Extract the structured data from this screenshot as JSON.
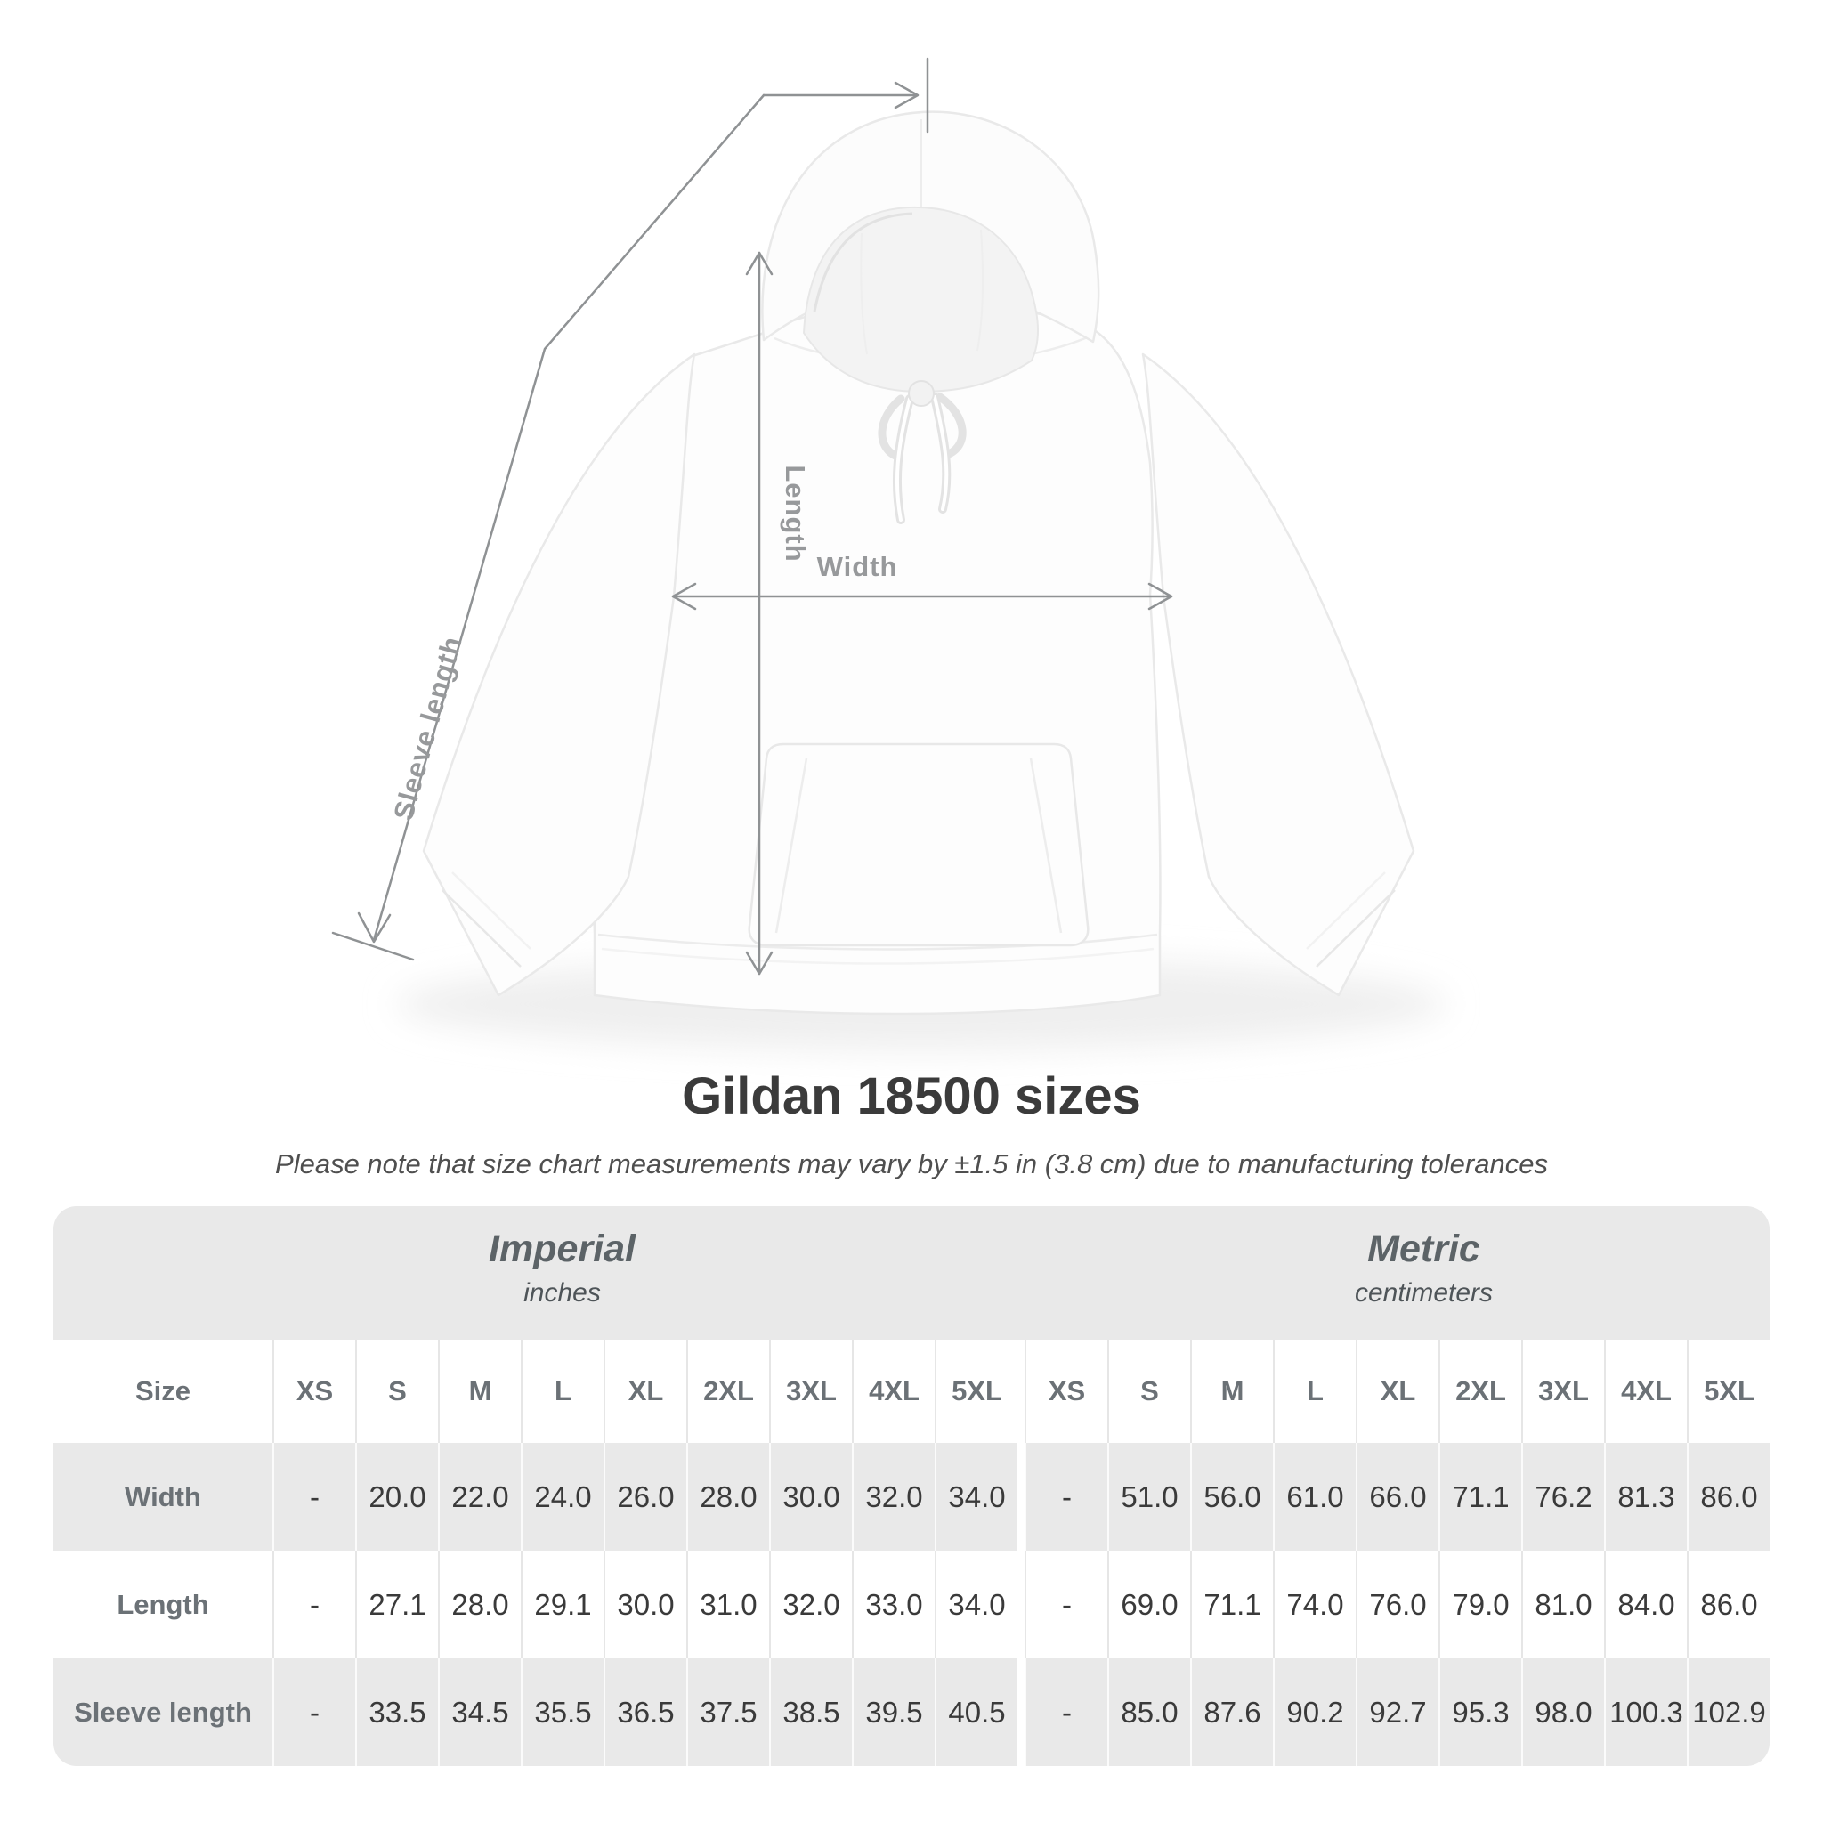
{
  "diagram": {
    "sleeve_length_label": "Sleeve length",
    "length_label": "Length",
    "width_label": "Width"
  },
  "title": "Gildan 18500 sizes",
  "subtitle": "Please note that size chart measurements may vary by ±1.5 in (3.8 cm) due to manufacturing tolerances",
  "table": {
    "size_header": "Size",
    "groups": [
      {
        "label": "Imperial",
        "sublabel": "inches"
      },
      {
        "label": "Metric",
        "sublabel": "centimeters"
      }
    ],
    "sizes": [
      "XS",
      "S",
      "M",
      "L",
      "XL",
      "2XL",
      "3XL",
      "4XL",
      "5XL"
    ],
    "rows": [
      {
        "label": "Width",
        "imperial": [
          "-",
          "20.0",
          "22.0",
          "24.0",
          "26.0",
          "28.0",
          "30.0",
          "32.0",
          "34.0"
        ],
        "metric": [
          "-",
          "51.0",
          "56.0",
          "61.0",
          "66.0",
          "71.1",
          "76.2",
          "81.3",
          "86.0"
        ]
      },
      {
        "label": "Length",
        "imperial": [
          "-",
          "27.1",
          "28.0",
          "29.1",
          "30.0",
          "31.0",
          "32.0",
          "33.0",
          "34.0"
        ],
        "metric": [
          "-",
          "69.0",
          "71.1",
          "74.0",
          "76.0",
          "79.0",
          "81.0",
          "84.0",
          "86.0"
        ]
      },
      {
        "label": "Sleeve length",
        "imperial": [
          "-",
          "33.5",
          "34.5",
          "35.5",
          "36.5",
          "37.5",
          "38.5",
          "39.5",
          "40.5"
        ],
        "metric": [
          "-",
          "85.0",
          "87.6",
          "90.2",
          "92.7",
          "95.3",
          "98.0",
          "100.3",
          "102.9"
        ]
      }
    ]
  },
  "colors": {
    "background": "#ffffff",
    "table_band": "#e9e9e9",
    "row_stripe": "#e9e9e9",
    "value_text": "#3a3a3a",
    "header_text": "#6b7176",
    "group_header_text": "#5c6367",
    "annotation_line": "#8f9294",
    "annotation_label": "#97999b",
    "title_text": "#3b3b3b"
  }
}
